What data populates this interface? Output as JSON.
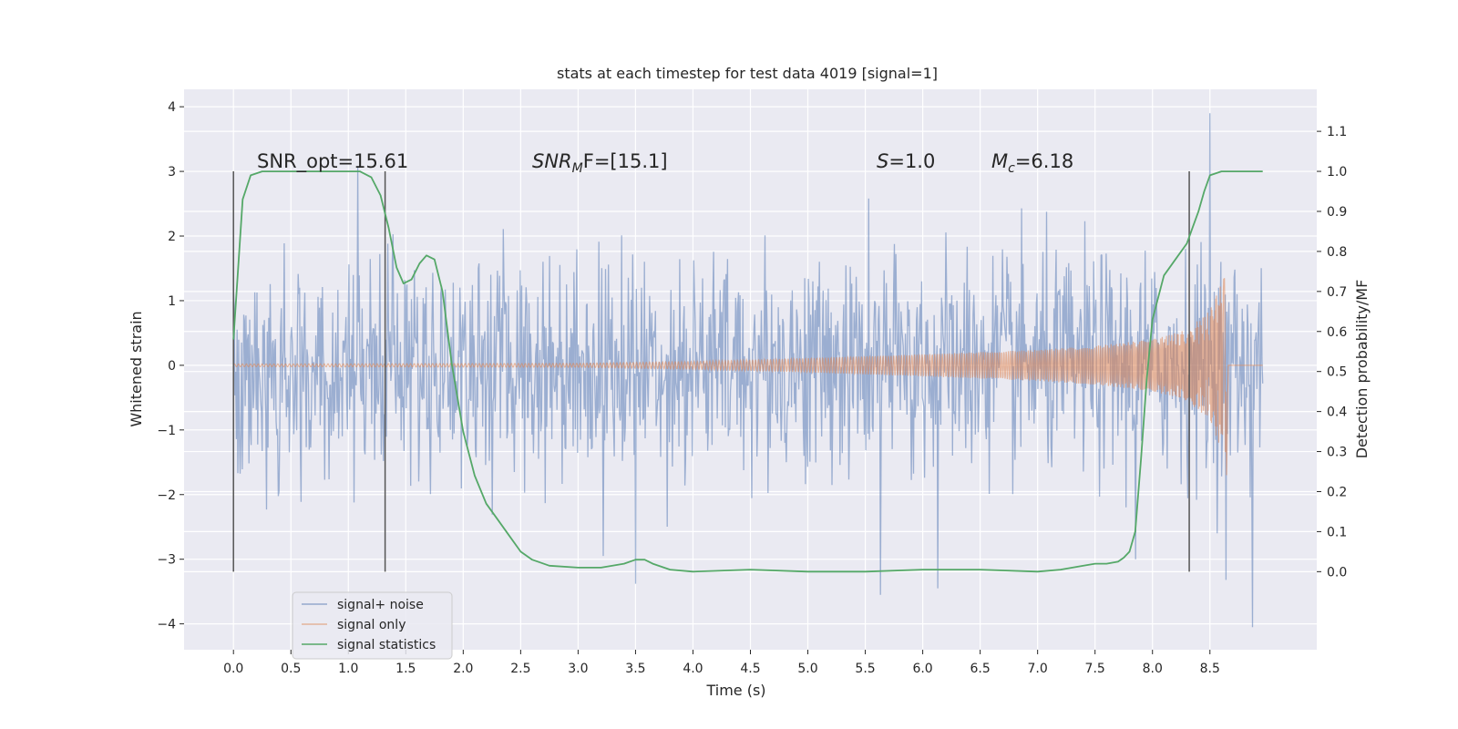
{
  "chart_data": {
    "type": "line",
    "title": "stats at each timestep for test data 4019 [signal=1]",
    "xlabel": "Time (s)",
    "ylabel": "Whitened strain",
    "y2label": "Detection probability/MF",
    "xlim": [
      -0.43,
      9.43
    ],
    "ylim": [
      -4.4,
      4.27
    ],
    "y2lim": [
      -0.195,
      1.205
    ],
    "xticks": [
      "0.0",
      "0.5",
      "1.0",
      "1.5",
      "2.0",
      "2.5",
      "3.0",
      "3.5",
      "4.0",
      "4.5",
      "5.0",
      "5.5",
      "6.0",
      "6.5",
      "7.0",
      "7.5",
      "8.0",
      "8.5"
    ],
    "yticks": [
      "4",
      "3",
      "2",
      "1",
      "0",
      "−1",
      "−2",
      "−3",
      "−4"
    ],
    "y2ticks": [
      "1.1",
      "1.0",
      "0.9",
      "0.8",
      "0.7",
      "0.6",
      "0.5",
      "0.4",
      "0.3",
      "0.2",
      "0.1",
      "0.0"
    ],
    "annotations": {
      "snr_opt": "SNR_opt=15.61",
      "snr_mf_main": "SNR",
      "snr_mf_sub": "M",
      "snr_mf_rest": "F=[15.1]",
      "s_italic": "S",
      "s_rest": "=1.0",
      "mc_italic": "M",
      "mc_sub": "c",
      "mc_rest": "=6.18"
    },
    "vlines": [
      0.0,
      1.32,
      8.32
    ],
    "series": [
      {
        "name": "signal+ noise",
        "color": "#4c72b0",
        "kind": "noise",
        "t_start": 0.0,
        "t_end": 8.96,
        "base_sigma": 0.85,
        "spikes": [
          [
            1.08,
            3.08
          ],
          [
            3.5,
            -3.38
          ],
          [
            5.63,
            -3.55
          ],
          [
            6.13,
            -3.45
          ],
          [
            8.5,
            3.9
          ],
          [
            8.64,
            -3.32
          ],
          [
            8.87,
            -4.05
          ],
          [
            3.22,
            -2.95
          ],
          [
            7.85,
            -3.0
          ]
        ]
      },
      {
        "name": "signal only",
        "color": "#dd8452",
        "kind": "chirp",
        "t_start": 0.0,
        "t_merge": 8.64,
        "t_end": 8.96,
        "amp_points": [
          [
            0.0,
            0.02
          ],
          [
            3.0,
            0.03
          ],
          [
            4.0,
            0.06
          ],
          [
            5.0,
            0.11
          ],
          [
            6.0,
            0.17
          ],
          [
            7.0,
            0.24
          ],
          [
            7.5,
            0.3
          ],
          [
            8.0,
            0.4
          ],
          [
            8.3,
            0.55
          ],
          [
            8.5,
            0.85
          ],
          [
            8.6,
            1.3
          ],
          [
            8.64,
            1.38
          ]
        ]
      },
      {
        "name": "signal statistics",
        "color": "#55a868",
        "kind": "line",
        "axis": "right",
        "x": [
          0.0,
          0.08,
          0.15,
          0.25,
          0.5,
          0.8,
          1.0,
          1.1,
          1.2,
          1.28,
          1.35,
          1.42,
          1.48,
          1.55,
          1.62,
          1.68,
          1.75,
          1.82,
          1.9,
          2.0,
          2.1,
          2.2,
          2.3,
          2.4,
          2.5,
          2.6,
          2.75,
          3.0,
          3.2,
          3.4,
          3.5,
          3.58,
          3.65,
          3.8,
          4.0,
          4.5,
          5.0,
          5.5,
          6.0,
          6.5,
          7.0,
          7.2,
          7.4,
          7.5,
          7.6,
          7.7,
          7.75,
          7.8,
          7.85,
          7.9,
          7.95,
          8.0,
          8.1,
          8.2,
          8.3,
          8.35,
          8.4,
          8.45,
          8.5,
          8.6,
          8.8,
          8.96
        ],
        "y": [
          0.58,
          0.93,
          0.99,
          1.0,
          1.0,
          1.0,
          1.0,
          1.0,
          0.985,
          0.94,
          0.86,
          0.76,
          0.72,
          0.73,
          0.77,
          0.79,
          0.78,
          0.7,
          0.52,
          0.35,
          0.24,
          0.17,
          0.13,
          0.09,
          0.05,
          0.03,
          0.015,
          0.01,
          0.01,
          0.02,
          0.03,
          0.03,
          0.02,
          0.005,
          0.0,
          0.005,
          0.0,
          0.0,
          0.005,
          0.005,
          0.0,
          0.005,
          0.015,
          0.02,
          0.02,
          0.025,
          0.035,
          0.05,
          0.1,
          0.28,
          0.48,
          0.63,
          0.74,
          0.78,
          0.82,
          0.86,
          0.9,
          0.95,
          0.99,
          1.0,
          1.0,
          1.0
        ]
      }
    ],
    "legend": {
      "location": "lower-left",
      "entries": [
        "signal+ noise",
        "signal only",
        "signal statistics"
      ]
    },
    "grid": true,
    "colors": {
      "background": "#eaeaf2",
      "grid": "#ffffff",
      "vline": "#555555"
    }
  }
}
